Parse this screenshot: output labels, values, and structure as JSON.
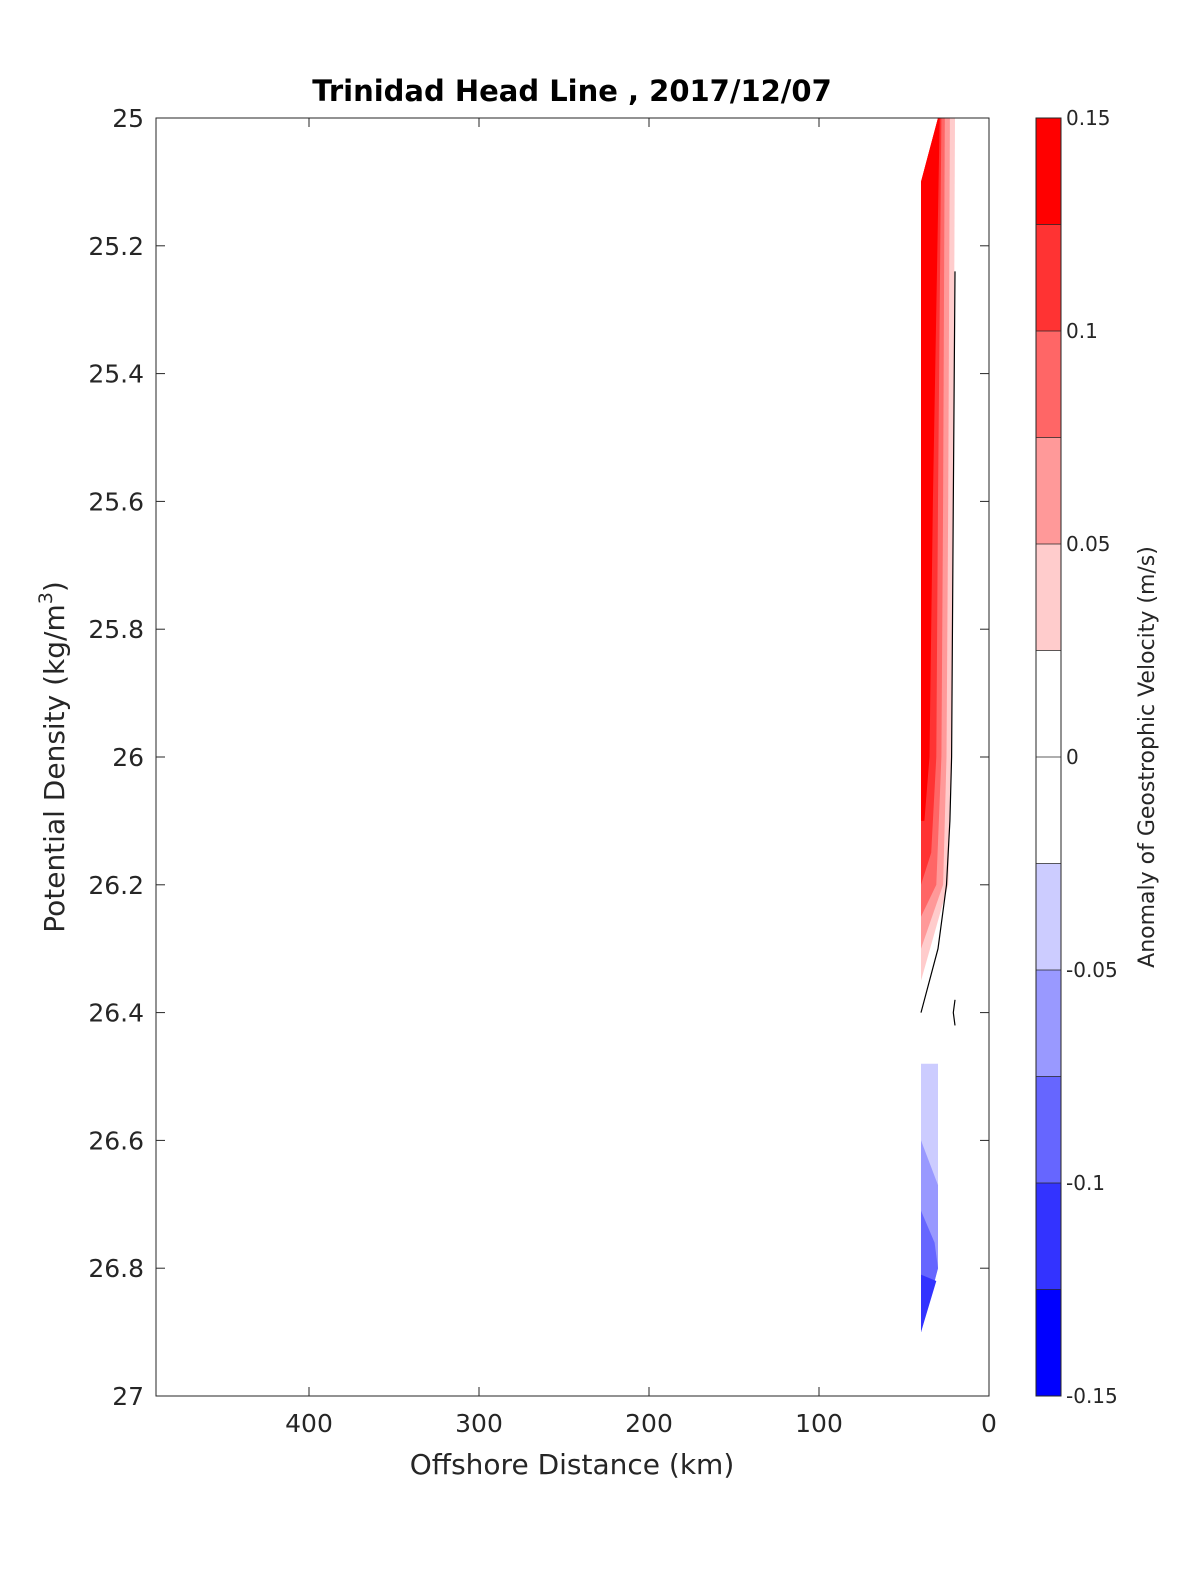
{
  "chart_data": {
    "type": "contour",
    "title": "Trinidad Head Line , 2017/12/07",
    "xlabel": "Offshore Distance (km)",
    "ylabel_main": "Potential Density (kg/m",
    "ylabel_sup": "3",
    "ylabel_close": ")",
    "xlim": [
      490,
      0
    ],
    "ylim": [
      25,
      27
    ],
    "x_reversed": true,
    "y_reversed": true,
    "x_ticks": [
      {
        "value": 400,
        "label": "400"
      },
      {
        "value": 300,
        "label": "300"
      },
      {
        "value": 200,
        "label": "200"
      },
      {
        "value": 100,
        "label": "100"
      },
      {
        "value": 0,
        "label": "0"
      }
    ],
    "y_ticks": [
      {
        "value": 25.0,
        "label": "25"
      },
      {
        "value": 25.2,
        "label": "25.2"
      },
      {
        "value": 25.4,
        "label": "25.4"
      },
      {
        "value": 25.6,
        "label": "25.6"
      },
      {
        "value": 25.8,
        "label": "25.8"
      },
      {
        "value": 26.0,
        "label": "26"
      },
      {
        "value": 26.2,
        "label": "26.2"
      },
      {
        "value": 26.4,
        "label": "26.4"
      },
      {
        "value": 26.6,
        "label": "26.6"
      },
      {
        "value": 26.8,
        "label": "26.8"
      },
      {
        "value": 27.0,
        "label": "27"
      }
    ],
    "contour_regions": [
      {
        "level": "0.025 to 0.05",
        "color": "#ffcccc",
        "points": [
          [
            30,
            25.0
          ],
          [
            20,
            25.0
          ],
          [
            21,
            25.6
          ],
          [
            22,
            26.0
          ],
          [
            24,
            26.2
          ],
          [
            40,
            26.35
          ],
          [
            40,
            25.1
          ]
        ]
      },
      {
        "level": "0.05 to 0.075",
        "color": "#ff9999",
        "points": [
          [
            30,
            25.0
          ],
          [
            23,
            25.0
          ],
          [
            24,
            25.6
          ],
          [
            25,
            26.0
          ],
          [
            27,
            26.2
          ],
          [
            40,
            26.3
          ],
          [
            40,
            25.1
          ]
        ]
      },
      {
        "level": "0.075 to 0.1",
        "color": "#ff6666",
        "points": [
          [
            30,
            25.0
          ],
          [
            26,
            25.0
          ],
          [
            27,
            25.6
          ],
          [
            28,
            26.0
          ],
          [
            31,
            26.2
          ],
          [
            40,
            26.25
          ],
          [
            40,
            25.1
          ]
        ]
      },
      {
        "level": "0.1 to 0.125",
        "color": "#ff3333",
        "points": [
          [
            30,
            25.0
          ],
          [
            28,
            25.0
          ],
          [
            30,
            25.6
          ],
          [
            31,
            26.0
          ],
          [
            34,
            26.15
          ],
          [
            40,
            26.2
          ],
          [
            40,
            25.1
          ]
        ]
      },
      {
        "level": "0.125 to 0.15",
        "color": "#ff0000",
        "points": [
          [
            30,
            25.0
          ],
          [
            29,
            25.0
          ],
          [
            33,
            25.6
          ],
          [
            35,
            26.0
          ],
          [
            38,
            26.1
          ],
          [
            40,
            26.1
          ],
          [
            40,
            25.1
          ]
        ]
      },
      {
        "level": "-0.05 to -0.025",
        "color": "#ccccff",
        "points": [
          [
            40,
            26.48
          ],
          [
            30,
            26.48
          ],
          [
            30,
            26.8
          ],
          [
            40,
            26.9
          ]
        ]
      },
      {
        "level": "-0.075 to -0.05",
        "color": "#9999ff",
        "points": [
          [
            40,
            26.6
          ],
          [
            30,
            26.67
          ],
          [
            30,
            26.8
          ],
          [
            40,
            26.9
          ]
        ]
      },
      {
        "level": "-0.1 to -0.075",
        "color": "#6666ff",
        "points": [
          [
            40,
            26.71
          ],
          [
            32,
            26.76
          ],
          [
            30,
            26.8
          ],
          [
            40,
            26.9
          ]
        ]
      },
      {
        "level": "-0.125 to -0.1",
        "color": "#3333ff",
        "points": [
          [
            40,
            26.81
          ],
          [
            31,
            26.82
          ],
          [
            40,
            26.9
          ]
        ]
      }
    ],
    "zero_contours": [
      [
        [
          20,
          25.24
        ],
        [
          21,
          25.6
        ],
        [
          22,
          26.0
        ],
        [
          23,
          26.1
        ],
        [
          25,
          26.2
        ],
        [
          30,
          26.3
        ],
        [
          40,
          26.4
        ]
      ],
      [
        [
          20,
          26.38
        ],
        [
          21,
          26.4
        ],
        [
          20,
          26.42
        ]
      ]
    ],
    "colorbar": {
      "label": "Anomaly of Geostrophic Velocity (m/s)",
      "range": [
        -0.15,
        0.15
      ],
      "colors_top_to_bottom": [
        "#ff0000",
        "#ff3333",
        "#ff6666",
        "#ff9999",
        "#ffcccc",
        "#ffffff",
        "#ffffff",
        "#ccccff",
        "#9999ff",
        "#6666ff",
        "#3333ff",
        "#0000ff"
      ],
      "ticks": [
        {
          "value": 0.15,
          "label": "0.15"
        },
        {
          "value": 0.1,
          "label": "0.1"
        },
        {
          "value": 0.05,
          "label": "0.05"
        },
        {
          "value": 0,
          "label": "0"
        },
        {
          "value": -0.05,
          "label": "-0.05"
        },
        {
          "value": -0.1,
          "label": "-0.1"
        },
        {
          "value": -0.15,
          "label": "-0.15"
        }
      ]
    }
  }
}
